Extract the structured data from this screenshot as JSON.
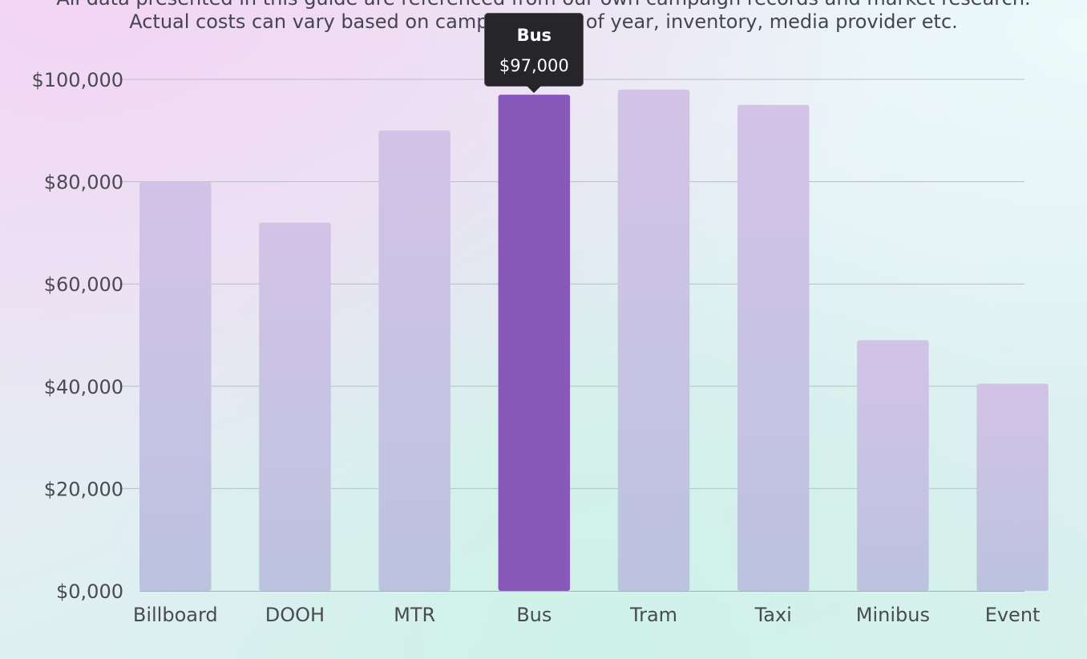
{
  "disclaimer": {
    "line1": "All data presented in this guide are referenced from our own campaign records and market research.",
    "line2": "Actual costs can vary based on campaign time of year, inventory, media provider etc."
  },
  "tooltip": {
    "title": "Bus",
    "value": "$97,000"
  },
  "colors": {
    "bar_default": "#c9c2e2",
    "bar_active": "#8659ba"
  },
  "chart_data": {
    "type": "bar",
    "categories": [
      "Billboard",
      "DOOH",
      "MTR",
      "Bus",
      "Tram",
      "Taxi",
      "Minibus",
      "Event"
    ],
    "values": [
      80000,
      72000,
      90000,
      97000,
      98000,
      95000,
      49000,
      40500
    ],
    "active_category": "Bus",
    "y_ticks": [
      "$0,000",
      "$20,000",
      "$40,000",
      "$60,000",
      "$80,000",
      "$100,000"
    ],
    "y_tick_values": [
      0,
      20000,
      40000,
      60000,
      80000,
      100000
    ],
    "ylim": [
      0,
      100000
    ],
    "grid": true,
    "title": "",
    "xlabel": "",
    "ylabel": ""
  }
}
